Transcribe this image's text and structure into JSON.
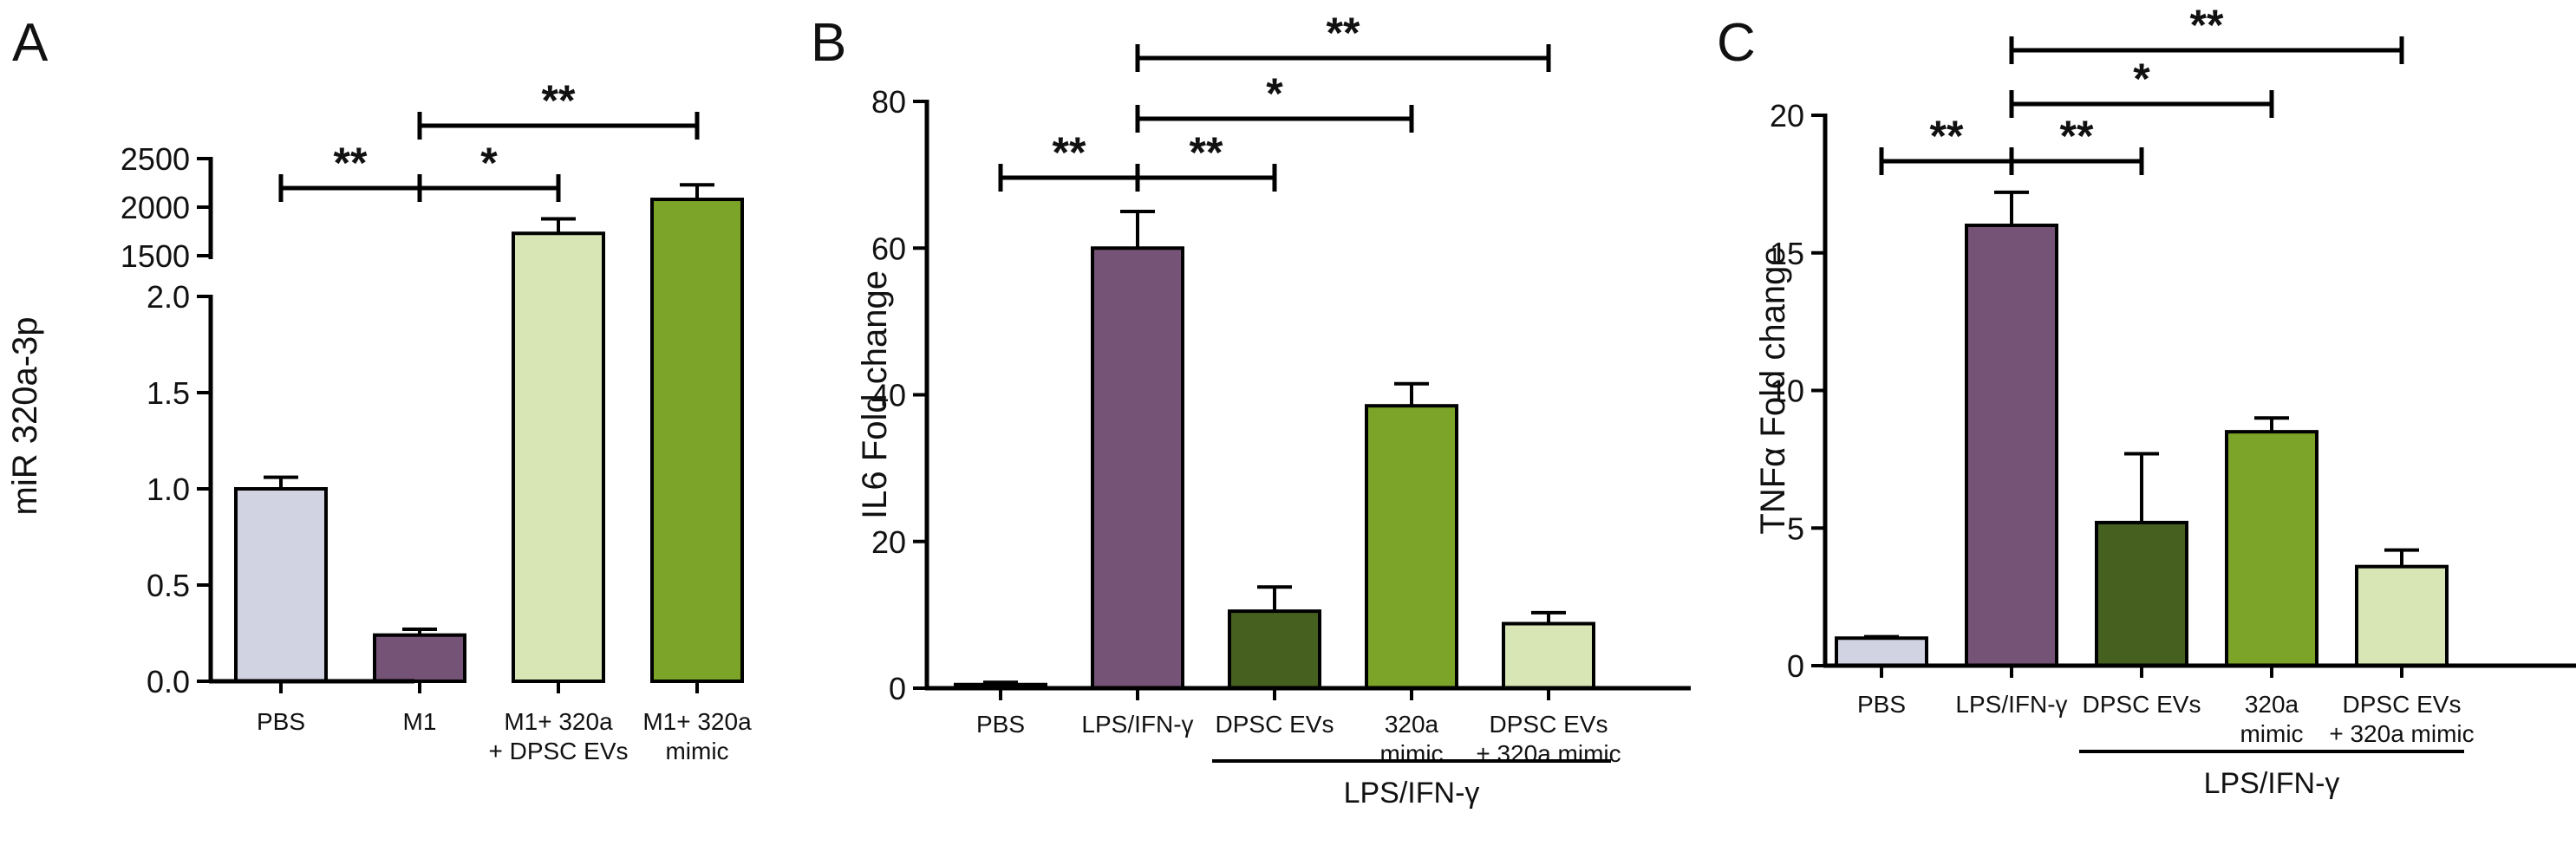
{
  "chart_data": [
    {
      "panel": "A",
      "type": "bar",
      "ylabel": "miR 320a-3p",
      "categories": [
        "PBS",
        "M1",
        "M1+ 320a\n+ DPSC EVs",
        "M1+ 320a\nmimic"
      ],
      "values": [
        1.0,
        0.24,
        1730,
        2080
      ],
      "errors": [
        0.06,
        0.03,
        150,
        150
      ],
      "colors": [
        "#d2d3e2",
        "#755377",
        "#d8e6b6",
        "#7ba428"
      ],
      "broken_axis": {
        "lower": {
          "ylim": [
            0,
            2.0
          ],
          "ticks": [
            "0.0",
            "0.5",
            "1.0",
            "1.5",
            "2.0"
          ]
        },
        "upper": {
          "ylim": [
            1500,
            2500
          ],
          "ticks": [
            "1500",
            "2000",
            "2500"
          ]
        }
      },
      "significance": [
        {
          "from": 0,
          "to": 1,
          "label": "**"
        },
        {
          "from": 1,
          "to": 2,
          "label": "*"
        },
        {
          "from": 1,
          "to": 3,
          "label": "**"
        }
      ]
    },
    {
      "panel": "B",
      "type": "bar",
      "ylabel": "IL6 Fold change",
      "categories": [
        "PBS",
        "LPS/IFN-γ",
        "DPSC EVs",
        "320a\nmimic",
        "DPSC EVs\n+ 320a mimic"
      ],
      "values": [
        0.5,
        60,
        10.5,
        38.5,
        8.8
      ],
      "errors": [
        0.3,
        5,
        3.3,
        3,
        1.5
      ],
      "colors": [
        "#d2d3e2",
        "#755377",
        "#46601f",
        "#7ba428",
        "#d8e6b6"
      ],
      "ylim": [
        0,
        80
      ],
      "yticks": [
        "0",
        "20",
        "40",
        "60",
        "80"
      ],
      "group_label": {
        "label": "LPS/IFN-γ",
        "from": 2,
        "to": 4
      },
      "significance": [
        {
          "from": 0,
          "to": 1,
          "label": "**"
        },
        {
          "from": 1,
          "to": 2,
          "label": "**"
        },
        {
          "from": 1,
          "to": 3,
          "label": "*"
        },
        {
          "from": 1,
          "to": 4,
          "label": "**"
        }
      ]
    },
    {
      "panel": "C",
      "type": "bar",
      "ylabel": "TNFα Fold change",
      "categories": [
        "PBS",
        "LPS/IFN-γ",
        "DPSC EVs",
        "320a\nmimic",
        "DPSC EVs\n+ 320a mimic"
      ],
      "values": [
        1.0,
        16.0,
        5.2,
        8.5,
        3.6
      ],
      "errors": [
        0.05,
        1.2,
        2.5,
        0.5,
        0.6
      ],
      "colors": [
        "#d2d3e2",
        "#755377",
        "#46601f",
        "#7ba428",
        "#d8e6b6"
      ],
      "ylim": [
        0,
        20
      ],
      "yticks": [
        "0",
        "5",
        "10",
        "15",
        "20"
      ],
      "group_label": {
        "label": "LPS/IFN-γ",
        "from": 2,
        "to": 4
      },
      "significance": [
        {
          "from": 0,
          "to": 1,
          "label": "**"
        },
        {
          "from": 1,
          "to": 2,
          "label": "**"
        },
        {
          "from": 1,
          "to": 3,
          "label": "*"
        },
        {
          "from": 1,
          "to": 4,
          "label": "**"
        }
      ]
    }
  ]
}
